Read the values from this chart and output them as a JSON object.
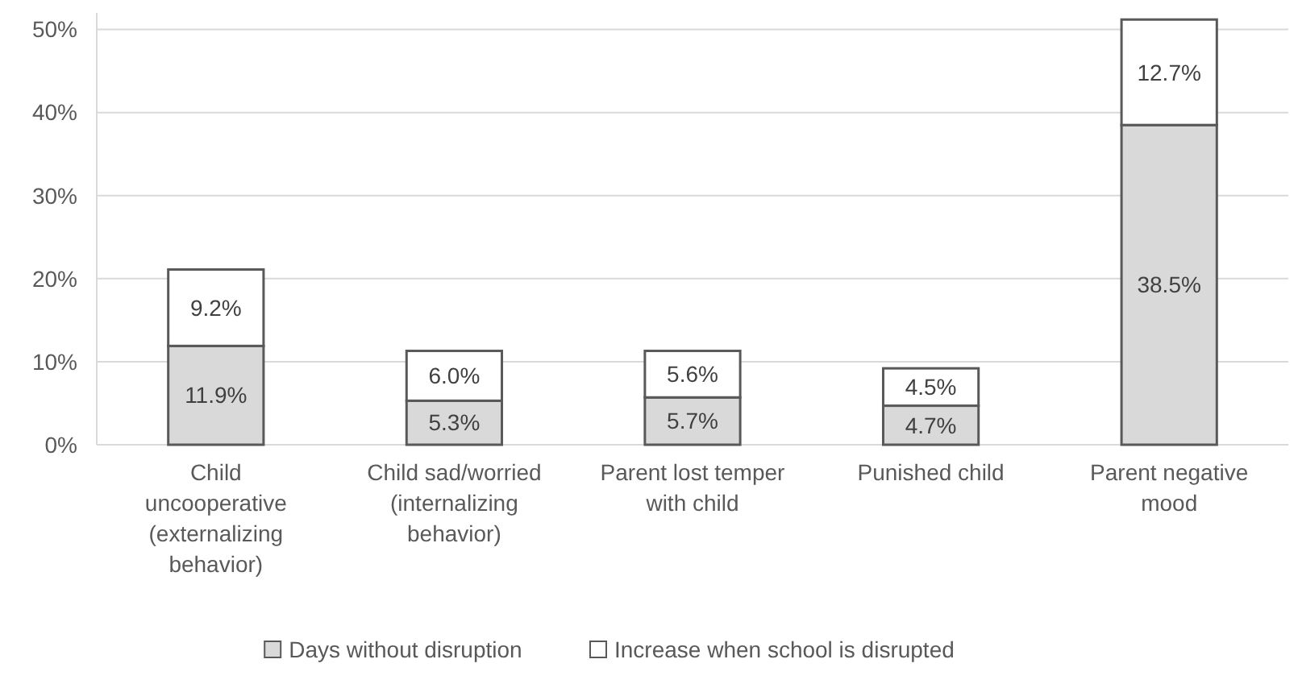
{
  "chart_data": {
    "type": "bar",
    "stacked": true,
    "categories": [
      "Child\nuncooperative\n(externalizing\nbehavior)",
      "Child sad/worried\n(internalizing\nbehavior)",
      "Parent lost temper\nwith child",
      "Punished child",
      "Parent negative\nmood"
    ],
    "series": [
      {
        "name": "Days without disruption",
        "color": "#d9d9d9",
        "values": [
          11.9,
          5.3,
          5.7,
          4.7,
          38.5
        ],
        "value_labels": [
          "11.9%",
          "5.3%",
          "5.7%",
          "4.7%",
          "38.5%"
        ]
      },
      {
        "name": "Increase when school is disrupted",
        "color": "#ffffff",
        "values": [
          9.2,
          6.0,
          5.6,
          4.5,
          12.7
        ],
        "value_labels": [
          "9.2%",
          "6.0%",
          "5.6%",
          "4.5%",
          "12.7%"
        ]
      }
    ],
    "ylim": [
      0,
      52
    ],
    "yticks": [
      {
        "value": 0,
        "label": "0%"
      },
      {
        "value": 10,
        "label": "10%"
      },
      {
        "value": 20,
        "label": "20%"
      },
      {
        "value": 30,
        "label": "30%"
      },
      {
        "value": 40,
        "label": "40%"
      },
      {
        "value": 50,
        "label": "50%"
      }
    ],
    "grid": "y",
    "legend": "bottom"
  }
}
